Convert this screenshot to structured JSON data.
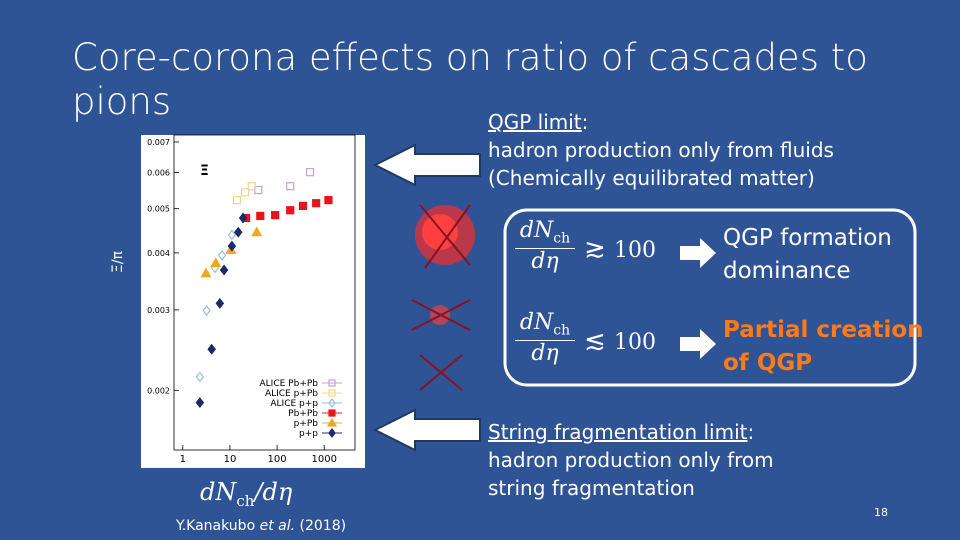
{
  "title": "Core-corona effects on ratio of cascades to pions",
  "qgp_limit": {
    "label": "QGP limit",
    "colon": ":",
    "lines": [
      "hadron production only from fluids",
      "(Chemically equilibrated matter)"
    ]
  },
  "box": {
    "rows": [
      {
        "numerator": "dN",
        "subscript": "ch",
        "denominator": "dη",
        "relation": "≳",
        "threshold": "100",
        "result": [
          "QGP formation",
          "dominance"
        ]
      },
      {
        "numerator": "dN",
        "subscript": "ch",
        "denominator": "dη",
        "relation": "≲",
        "threshold": "100",
        "result": [
          "Partial creation",
          "of QGP"
        ]
      }
    ]
  },
  "string_limit": {
    "label": "String fragmentation limit",
    "colon": ":",
    "lines": [
      "hadron production only from",
      "string fragmentation"
    ]
  },
  "plot": {
    "symbol": "Ξ",
    "y_label": "Ξ/π",
    "x_label": {
      "main": "dN",
      "subscript": "ch",
      "rest": "/dη"
    },
    "xlim": [
      0.65,
      4500
    ],
    "ylim": [
      0.00148,
      0.00725
    ],
    "log_x": true,
    "log_y": true,
    "xticks": [
      1,
      10,
      100,
      1000
    ],
    "yticks": [
      0.007,
      0.006,
      0.005,
      0.004,
      0.003,
      0.002
    ],
    "series": [
      {
        "name": "ALICE Pb+Pb",
        "color": "#c9a0cc",
        "marker": "square",
        "filled": false,
        "x": [
          40,
          190,
          500
        ],
        "y": [
          0.00549,
          0.0056,
          0.00601
        ]
      },
      {
        "name": "ALICE p+Pb",
        "color": "#f2d58a",
        "marker": "square",
        "filled": false,
        "x": [
          14,
          21,
          29
        ],
        "y": [
          0.00522,
          0.00543,
          0.0056
        ]
      },
      {
        "name": "ALICE p+p",
        "color": "#9dbde3",
        "marker": "diamond",
        "filled": false,
        "x": [
          2.3,
          3.2,
          4.8,
          6.8,
          11
        ],
        "y": [
          0.00214,
          0.00299,
          0.00371,
          0.00395,
          0.00438
        ]
      },
      {
        "name": "Pb+Pb",
        "color": "#e8141c",
        "marker": "square",
        "filled": true,
        "x": [
          22,
          44,
          91,
          190,
          355,
          675,
          1230
        ],
        "y": [
          0.00477,
          0.00482,
          0.00484,
          0.00496,
          0.00507,
          0.00514,
          0.00522
        ]
      },
      {
        "name": "p+Pb",
        "color": "#f0a81c",
        "marker": "triangle",
        "filled": true,
        "x": [
          3.1,
          5.0,
          10.5,
          37
        ],
        "y": [
          0.00361,
          0.0038,
          0.00406,
          0.00444
        ]
      },
      {
        "name": "p+p",
        "color": "#1b2a6b",
        "marker": "diamond",
        "filled": true,
        "x": [
          2.3,
          4.1,
          6.1,
          7.5,
          11,
          15,
          19
        ],
        "y": [
          0.00188,
          0.00246,
          0.0031,
          0.00367,
          0.00414,
          0.00444,
          0.00477
        ]
      }
    ]
  },
  "citation": {
    "author": "Y.Kanakubo ",
    "etal": "et al.",
    "year": " (2018)"
  },
  "page_number": "18"
}
